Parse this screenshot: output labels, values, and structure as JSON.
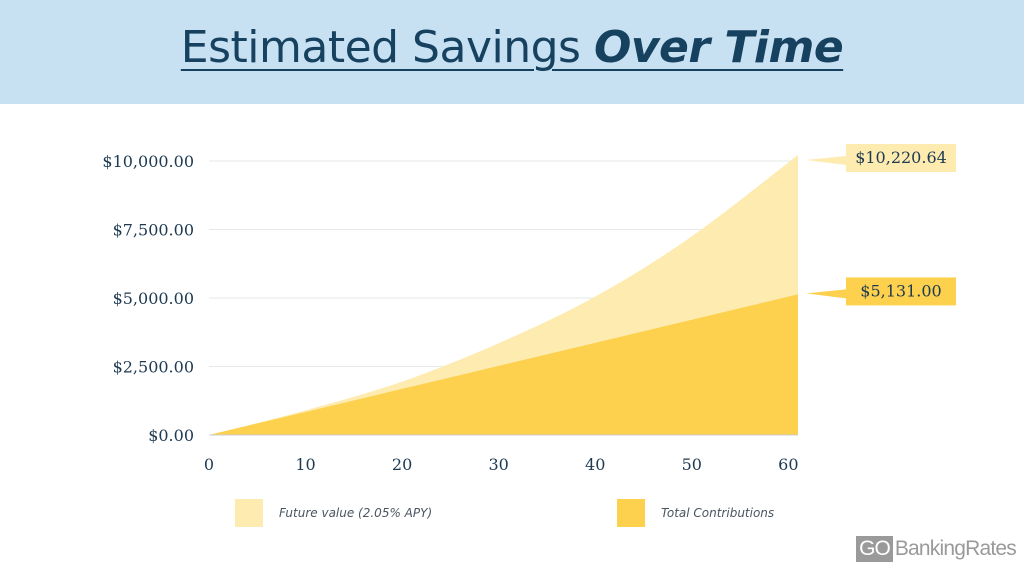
{
  "header": {
    "title_main": "Estimated Savings ",
    "title_emphasis": "Over Time"
  },
  "chart_data": {
    "type": "area",
    "title": "Estimated Savings Over Time",
    "xlabel": "",
    "ylabel": "",
    "xlim": [
      0,
      61
    ],
    "ylim": [
      0,
      10000
    ],
    "x_ticks": [
      "0",
      "10",
      "20",
      "30",
      "40",
      "50",
      "60"
    ],
    "y_ticks": [
      "$0.00",
      "$2,500.00",
      "$5,000.00",
      "$7,500.00",
      "$10,000.00"
    ],
    "grid": true,
    "legend_position": "bottom",
    "x": [
      0,
      10,
      20,
      30,
      40,
      50,
      61
    ],
    "series": [
      {
        "name": "Future value (2.05% APY)",
        "color": "#fdebb0",
        "values": [
          0,
          900,
          1950,
          3350,
          5050,
          7250,
          10220.64
        ]
      },
      {
        "name": "Total Contributions",
        "color": "#fdd04d",
        "values": [
          0,
          841,
          1682,
          2523,
          3364,
          4205,
          5131
        ]
      }
    ],
    "annotations": [
      {
        "label": "$10,220.64",
        "value": 10220.64,
        "color": "#fdebb0"
      },
      {
        "label": "$5,131.00",
        "value": 5131,
        "color": "#fdd04d"
      }
    ]
  },
  "brand": {
    "logo_go": "GO",
    "logo_rest": "BankingRates"
  }
}
